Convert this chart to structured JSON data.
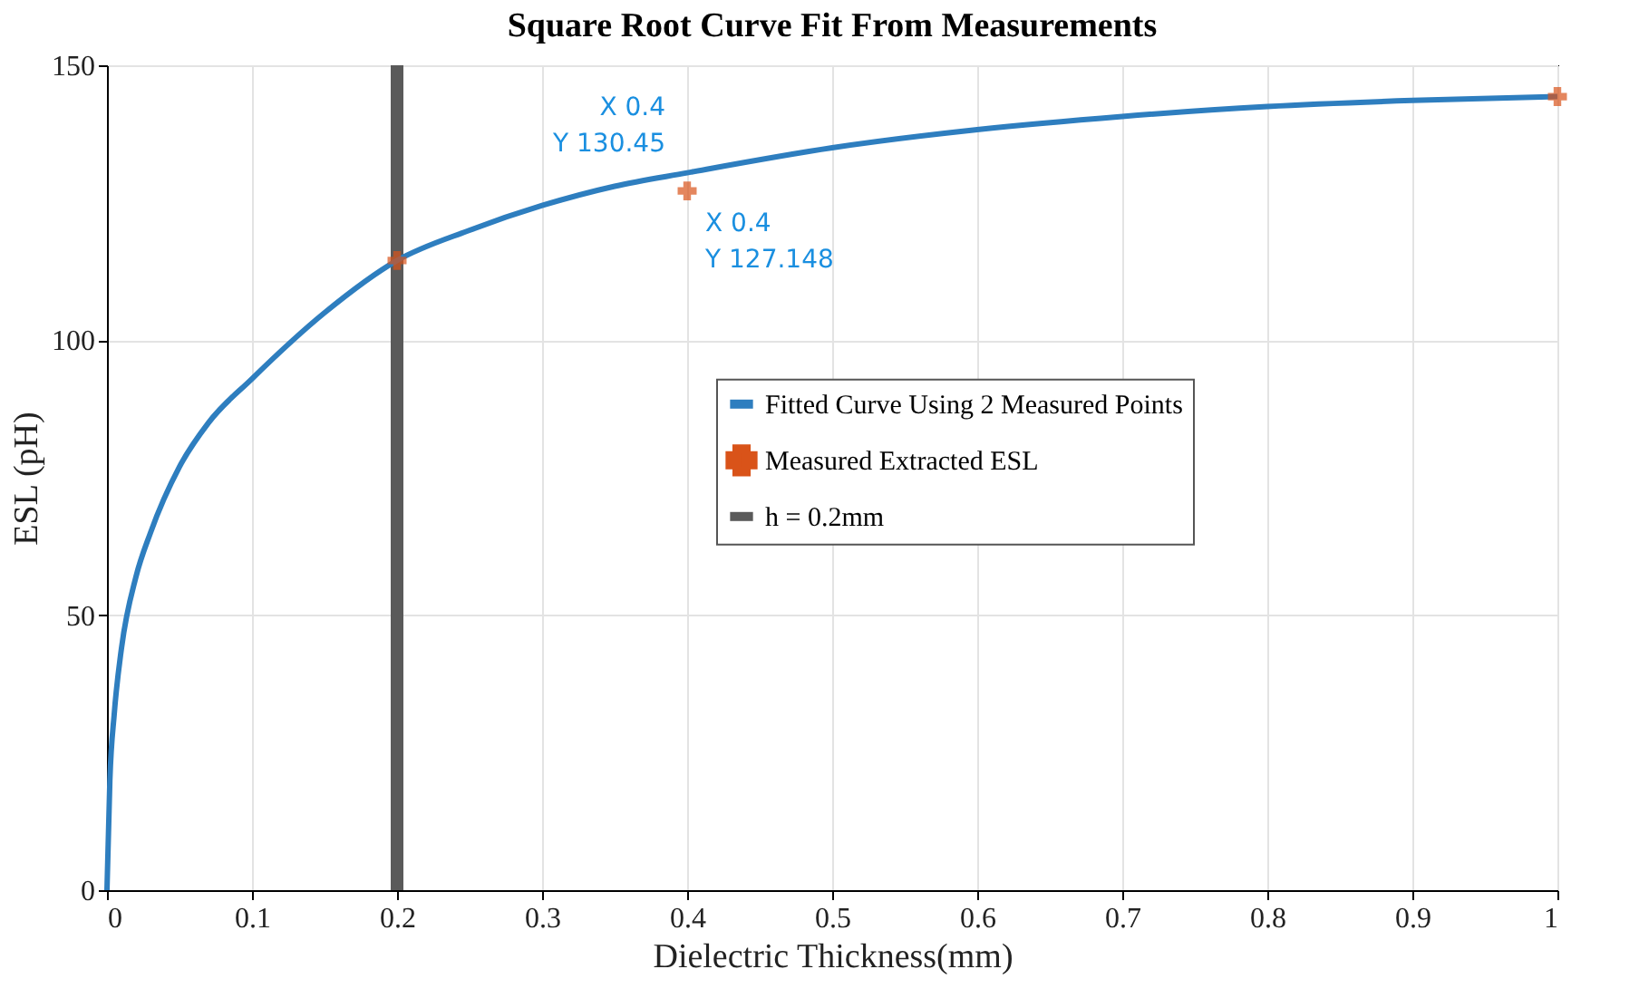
{
  "chart_data": {
    "type": "line",
    "title": "Square Root Curve Fit From Measurements",
    "xlabel": "Dielectric Thickness(mm)",
    "ylabel": "ESL (pH)",
    "xlim": [
      0,
      1
    ],
    "ylim": [
      0,
      150
    ],
    "xticks": [
      0,
      0.1,
      0.2,
      0.3,
      0.4,
      0.5,
      0.6,
      0.7,
      0.8,
      0.9,
      1
    ],
    "yticks": [
      0,
      50,
      100,
      150
    ],
    "grid": true,
    "legend": "right",
    "series": [
      {
        "name": "Fitted Curve Using 2 Measured Points",
        "color": "#2e7ebf",
        "type": "line",
        "x": [
          0,
          0.002,
          0.005,
          0.01,
          0.02,
          0.03,
          0.05,
          0.07,
          0.1,
          0.15,
          0.2,
          0.25,
          0.3,
          0.35,
          0.4,
          0.5,
          0.6,
          0.7,
          0.8,
          0.9,
          1
        ],
        "values": [
          0,
          20,
          32,
          44,
          57,
          65,
          77,
          85,
          93,
          105,
          114.5,
          120,
          124.5,
          128,
          130.45,
          135,
          138.3,
          140.7,
          142.5,
          143.6,
          144.3
        ]
      },
      {
        "name": "Measured Extracted ESL",
        "color": "#d95319",
        "type": "scatter",
        "marker": "cross",
        "x": [
          0.2,
          0.4,
          1
        ],
        "values": [
          114.5,
          127.148,
          144.3
        ]
      },
      {
        "name": "h = 0.2mm",
        "color": "#5a5a5a",
        "x": [
          0.2,
          0.2
        ],
        "values": [
          0,
          150
        ]
      }
    ],
    "annotations": [
      {
        "text": "X 0.4\nY 130.45",
        "x": 0.4,
        "y": 130.45
      },
      {
        "text": "X 0.4\nY 127.148",
        "x": 0.4,
        "y": 127.148
      }
    ]
  }
}
